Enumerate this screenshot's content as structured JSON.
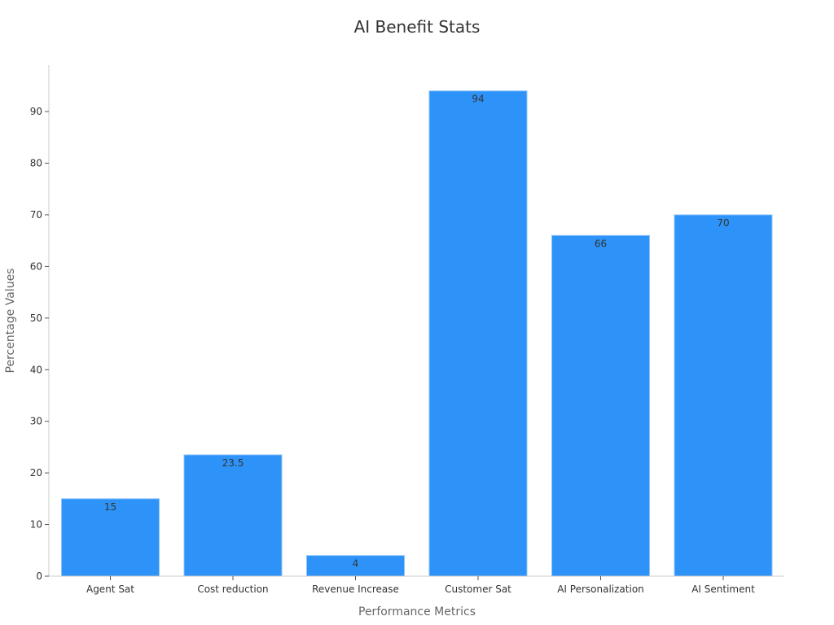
{
  "chart_data": {
    "type": "bar",
    "title": "AI Benefit Stats",
    "xlabel": "Performance Metrics",
    "ylabel": "Percentage Values",
    "categories": [
      "Agent Sat",
      "Cost reduction",
      "Revenue Increase",
      "Customer Sat",
      "AI Personalization",
      "AI Sentiment"
    ],
    "values": [
      15,
      23.5,
      4,
      94,
      66,
      70
    ],
    "data_labels": [
      "15",
      "23.5",
      "4",
      "94",
      "66",
      "70"
    ],
    "yticks": [
      0,
      10,
      20,
      30,
      40,
      50,
      60,
      70,
      80,
      90
    ],
    "ylim": [
      0,
      99
    ],
    "grid": false,
    "legend": "none",
    "bar_color": "#2E93F8",
    "axis_color": "#CCCCCC",
    "text_color": "#333333",
    "label_color": "#666666"
  }
}
